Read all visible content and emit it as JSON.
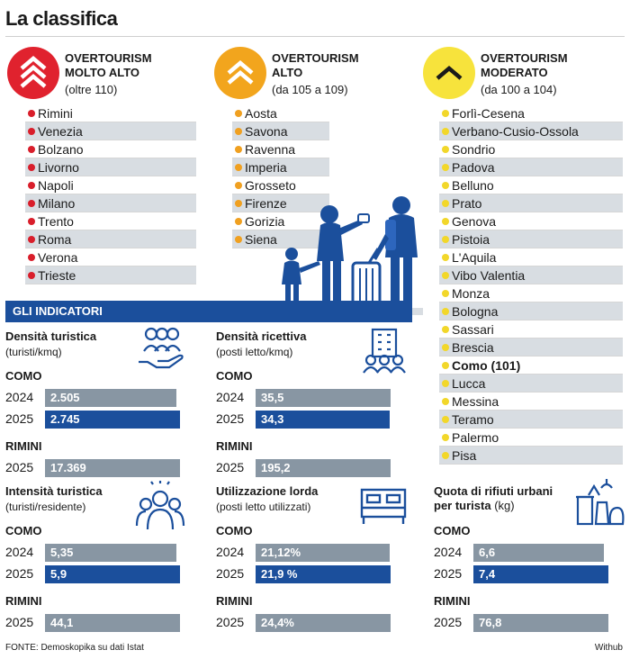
{
  "title": "La classifica",
  "categories": [
    {
      "line1": "OVERTOURISM",
      "line2": "MOLTO ALTO",
      "range": "(oltre 110)",
      "color": "#e0222e",
      "dot": "#d91e2b",
      "cities": [
        "Rimini",
        "Venezia",
        "Bolzano",
        "Livorno",
        "Napoli",
        "Milano",
        "Trento",
        "Roma",
        "Verona",
        "Trieste"
      ]
    },
    {
      "line1": "OVERTOURISM",
      "line2": "ALTO",
      "range": "(da 105 a 109)",
      "color": "#f2a51d",
      "dot": "#f0a020",
      "cities": [
        "Aosta",
        "Savona",
        "Ravenna",
        "Imperia",
        "Grosseto",
        "Firenze",
        "Gorizia",
        "Siena"
      ]
    },
    {
      "line1": "OVERTOURISM",
      "line2": "MODERATO",
      "range": "(da 100 a 104)",
      "color": "#f7e33c",
      "dot": "#f2d72a",
      "cities": [
        "Forlì-Cesena",
        "Verbano-Cusio-Ossola",
        "Sondrio",
        "Padova",
        "Belluno",
        "Prato",
        "Genova",
        "Pistoia",
        "L'Aquila",
        "Vibo Valentia",
        "Monza",
        "Bologna",
        "Sassari",
        "Brescia",
        "Como (101)",
        "Lucca",
        "Messina",
        "Teramo",
        "Palermo",
        "Pisa"
      ]
    }
  ],
  "indicators_label": "GLI INDICATORI",
  "chart_data": [
    {
      "type": "bar",
      "title": "Densità turistica",
      "subtitle": "(turisti/kmq)",
      "city1": "COMO",
      "city2": "RIMINI",
      "rows": [
        {
          "year": "2024",
          "label": "2.505",
          "value": 2505
        },
        {
          "year": "2025",
          "label": "2.745",
          "value": 2745
        }
      ],
      "rimini": {
        "year": "2025",
        "label": "17.369",
        "value": 17369
      }
    },
    {
      "type": "bar",
      "title": "Densità ricettiva",
      "subtitle": "(posti letto/kmq)",
      "city1": "COMO",
      "city2": "RIMINI",
      "rows": [
        {
          "year": "2024",
          "label": "35,5",
          "value": 35.5
        },
        {
          "year": "2025",
          "label": "34,3",
          "value": 34.3
        }
      ],
      "rimini": {
        "year": "2025",
        "label": "195,2",
        "value": 195.2
      }
    },
    {
      "type": "bar",
      "title": "Intensità turistica",
      "subtitle": "(turisti/residente)",
      "city1": "COMO",
      "city2": "RIMINI",
      "rows": [
        {
          "year": "2024",
          "label": "5,35",
          "value": 5.35
        },
        {
          "year": "2025",
          "label": "5,9",
          "value": 5.9
        }
      ],
      "rimini": {
        "year": "2025",
        "label": "44,1",
        "value": 44.1
      }
    },
    {
      "type": "bar",
      "title": "Utilizzazione lorda",
      "subtitle": "(posti letto utilizzati)",
      "city1": "COMO",
      "city2": "RIMINI",
      "rows": [
        {
          "year": "2024",
          "label": "21,12%",
          "value": 21.12
        },
        {
          "year": "2025",
          "label": "21,9 %",
          "value": 21.9
        }
      ],
      "rimini": {
        "year": "2025",
        "label": "24,4%",
        "value": 24.4
      }
    },
    {
      "type": "bar",
      "title": "Quota di rifiuti urbani",
      "title2": "per turista",
      "unit": " (kg)",
      "city1": "COMO",
      "city2": "RIMINI",
      "rows": [
        {
          "year": "2024",
          "label": "6,6",
          "value": 6.6
        },
        {
          "year": "2025",
          "label": "7,4",
          "value": 7.4
        }
      ],
      "rimini": {
        "year": "2025",
        "label": "76,8",
        "value": 76.8
      }
    }
  ],
  "footer": "FONTE: Demoskopika su dati Istat",
  "credit": "Withub",
  "colors": {
    "blue": "#1b4f9c",
    "grey": "#8896a3",
    "shade": "#d8dde2"
  }
}
